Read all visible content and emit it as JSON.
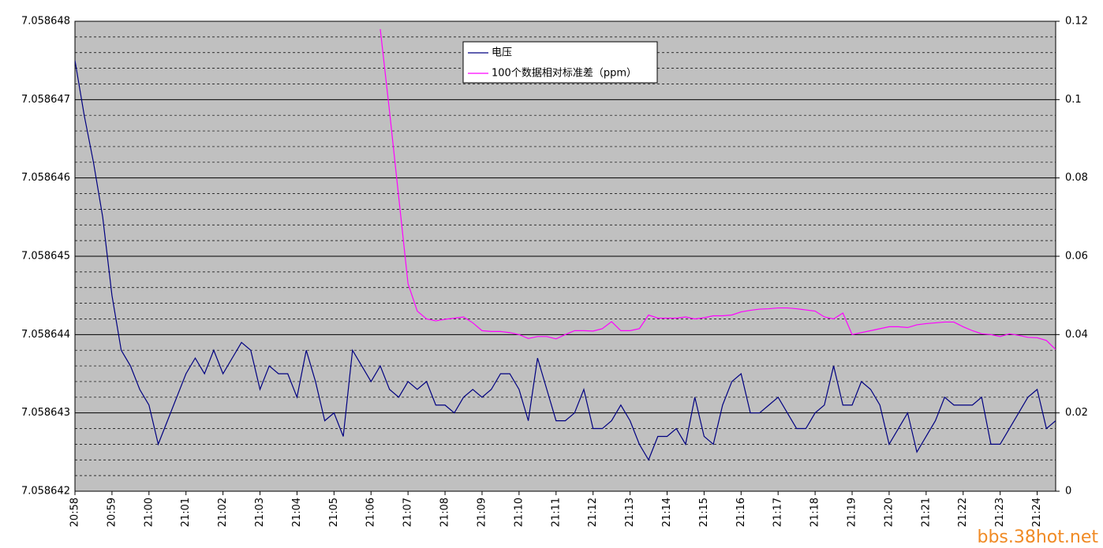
{
  "chart_data": {
    "type": "line",
    "categories": [
      "20:58",
      null,
      null,
      null,
      "20:59",
      null,
      null,
      null,
      "21:00",
      null,
      null,
      null,
      "21:01",
      null,
      null,
      null,
      "21:02",
      null,
      null,
      null,
      "21:03",
      null,
      null,
      null,
      "21:04",
      null,
      null,
      null,
      "21:05",
      null,
      null,
      null,
      "21:06",
      null,
      null,
      null,
      "21:07",
      null,
      null,
      null,
      "21:08",
      null,
      null,
      null,
      "21:09",
      null,
      null,
      null,
      "21:10",
      null,
      null,
      null,
      "21:11",
      null,
      null,
      null,
      "21:12",
      null,
      null,
      null,
      "21:13",
      null,
      null,
      null,
      "21:14",
      null,
      null,
      null,
      "21:15",
      null,
      null,
      null,
      "21:16",
      null,
      null,
      null,
      "21:17",
      null,
      null,
      null,
      "21:18",
      null,
      null,
      null,
      "21:19",
      null,
      null,
      null,
      "21:20",
      null,
      null,
      null,
      "21:21",
      null,
      null,
      null,
      "21:22",
      null,
      null,
      null,
      "21:23",
      null,
      null,
      null,
      "21:24",
      null,
      null
    ],
    "series": [
      {
        "name": "电压",
        "color": "#000080",
        "axis": "y",
        "values": [
          7.0586475,
          7.0586468,
          7.0586462,
          7.0586455,
          7.0586445,
          7.0586438,
          7.0586436,
          7.0586433,
          7.0586431,
          7.0586426,
          7.0586429,
          7.0586432,
          7.0586435,
          7.0586437,
          7.0586435,
          7.0586438,
          7.0586435,
          7.0586437,
          7.0586439,
          7.0586438,
          7.0586433,
          7.0586436,
          7.0586435,
          7.0586435,
          7.0586432,
          7.0586438,
          7.0586434,
          7.0586429,
          7.058643,
          7.0586427,
          7.0586438,
          7.0586436,
          7.0586434,
          7.0586436,
          7.0586433,
          7.0586432,
          7.0586434,
          7.0586433,
          7.0586434,
          7.0586431,
          7.0586431,
          7.058643,
          7.0586432,
          7.0586433,
          7.0586432,
          7.0586433,
          7.0586435,
          7.0586435,
          7.0586433,
          7.0586429,
          7.0586437,
          7.0586433,
          7.0586429,
          7.0586429,
          7.058643,
          7.0586433,
          7.0586428,
          7.0586428,
          7.0586429,
          7.0586431,
          7.0586429,
          7.0586426,
          7.0586424,
          7.0586427,
          7.0586427,
          7.0586428,
          7.0586426,
          7.0586432,
          7.0586427,
          7.0586426,
          7.0586431,
          7.0586434,
          7.0586435,
          7.058643,
          7.058643,
          7.0586431,
          7.0586432,
          7.058643,
          7.0586428,
          7.0586428,
          7.058643,
          7.0586431,
          7.0586436,
          7.0586431,
          7.0586431,
          7.0586434,
          7.0586433,
          7.0586431,
          7.0586426,
          7.0586428,
          7.058643,
          7.0586425,
          7.0586427,
          7.0586429,
          7.0586432,
          7.0586431,
          7.0586431,
          7.0586431,
          7.0586432,
          7.0586426,
          7.0586426,
          7.0586428,
          7.058643,
          7.0586432,
          7.0586433,
          7.0586428,
          7.0586429
        ]
      },
      {
        "name": "100个数据相对标准差（ppm）",
        "color": "#ff00ff",
        "axis": "y2",
        "values": [
          null,
          null,
          null,
          null,
          null,
          null,
          null,
          null,
          null,
          null,
          null,
          null,
          null,
          null,
          null,
          null,
          null,
          null,
          null,
          null,
          null,
          null,
          null,
          null,
          null,
          null,
          null,
          null,
          null,
          null,
          null,
          null,
          null,
          0.118,
          0.097,
          0.075,
          0.053,
          0.046,
          0.044,
          0.0435,
          0.0439,
          0.0442,
          0.0445,
          0.043,
          0.041,
          0.0408,
          0.0408,
          0.0405,
          0.04,
          0.039,
          0.0395,
          0.0395,
          0.0389,
          0.04,
          0.041,
          0.041,
          0.0409,
          0.0415,
          0.0433,
          0.041,
          0.041,
          0.0415,
          0.045,
          0.0442,
          0.0442,
          0.0442,
          0.0445,
          0.044,
          0.0443,
          0.0448,
          0.0448,
          0.045,
          0.0458,
          0.0462,
          0.0465,
          0.0466,
          0.0468,
          0.0468,
          0.0466,
          0.0463,
          0.046,
          0.0445,
          0.044,
          0.0455,
          0.04,
          0.0405,
          0.041,
          0.0415,
          0.042,
          0.042,
          0.0418,
          0.0425,
          0.0428,
          0.043,
          0.0432,
          0.0432,
          0.042,
          0.041,
          0.0402,
          0.04,
          0.0395,
          0.0402,
          0.0398,
          0.0393,
          0.0392,
          0.0385,
          0.0362
        ]
      }
    ],
    "ylim": [
      7.058642,
      7.058648
    ],
    "yticks": [
      7.058642,
      7.058643,
      7.058644,
      7.058645,
      7.058646,
      7.058647,
      7.058648
    ],
    "y2lim": [
      0,
      0.12
    ],
    "y2ticks": [
      0,
      0.02,
      0.04,
      0.06,
      0.08,
      0.1,
      0.12
    ],
    "grid": true,
    "legend": "top",
    "background": "#c0c0c0"
  },
  "watermark": "bbs.38hot.net"
}
